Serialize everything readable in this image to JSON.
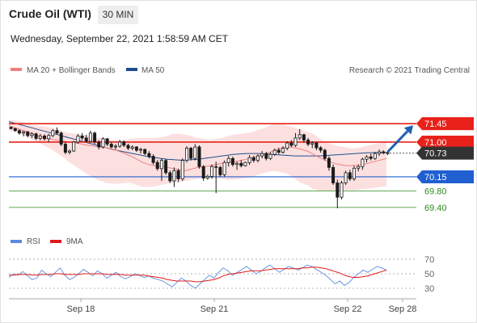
{
  "header": {
    "instrument": "Crude Oil (WTI)",
    "timeframe": "30 MIN",
    "datetime": "Wednesday, September 22, 2021 1:58:59 AM CET"
  },
  "legend": {
    "ma20_bb": "MA 20 + Bollinger Bands",
    "ma50": "MA 50",
    "credit": "Research © 2021 Trading Central",
    "rsi": "RSI",
    "rsi_ma": "9MA"
  },
  "colors": {
    "resistance": "#e8221b",
    "support_blue": "#1f5fd1",
    "support_green": "#2e8b1e",
    "ma20": "#f08080",
    "ma50": "#1f4e8c",
    "band_fill": "#fbdada",
    "candle_up": "#ffffff",
    "candle_down": "#1a1a1a",
    "last_price_tag": "#333333",
    "rsi": "#5b8be0",
    "rsi_ma": "#e01b1b"
  },
  "chart_data": [
    {
      "type": "candlestick",
      "ylim": [
        69.2,
        71.75
      ],
      "x_ticks": [
        "Sep 18",
        "Sep 21",
        "Sep 22",
        "Sep 28"
      ],
      "levels": [
        {
          "value": 71.45,
          "label": "71.45",
          "style": "red-tag"
        },
        {
          "value": 71.0,
          "label": "71.00",
          "style": "red-tag"
        },
        {
          "value": 70.73,
          "label": "70.73",
          "style": "dark-tag"
        },
        {
          "value": 70.15,
          "label": "70.15",
          "style": "blue-tag"
        },
        {
          "value": 69.8,
          "label": "69.80",
          "style": "green-text"
        },
        {
          "value": 69.4,
          "label": "69.40",
          "style": "green-text"
        }
      ],
      "last_price": 70.73,
      "projection": {
        "from": 70.73,
        "to": 71.45
      },
      "candles": [
        [
          71.36,
          71.38,
          71.31,
          71.33
        ],
        [
          71.33,
          71.35,
          71.25,
          71.28
        ],
        [
          71.28,
          71.32,
          71.18,
          71.22
        ],
        [
          71.22,
          71.28,
          71.14,
          71.25
        ],
        [
          71.25,
          71.27,
          71.12,
          71.16
        ],
        [
          71.16,
          71.24,
          71.1,
          71.2
        ],
        [
          71.2,
          71.23,
          71.05,
          71.09
        ],
        [
          71.09,
          71.2,
          71.04,
          71.15
        ],
        [
          71.15,
          71.19,
          71.04,
          71.08
        ],
        [
          71.08,
          71.2,
          71.0,
          71.16
        ],
        [
          71.16,
          71.32,
          71.12,
          71.28
        ],
        [
          71.28,
          71.36,
          71.18,
          71.22
        ],
        [
          71.22,
          71.26,
          70.9,
          70.95
        ],
        [
          70.95,
          71.0,
          70.7,
          70.75
        ],
        [
          70.75,
          70.82,
          70.7,
          70.78
        ],
        [
          70.78,
          71.03,
          70.76,
          71.0
        ],
        [
          71.0,
          71.2,
          70.96,
          71.15
        ],
        [
          71.15,
          71.22,
          71.05,
          71.1
        ],
        [
          71.1,
          71.18,
          70.98,
          71.02
        ],
        [
          71.02,
          71.28,
          71.0,
          71.22
        ],
        [
          71.22,
          71.26,
          70.95,
          71.0
        ],
        [
          71.0,
          71.05,
          70.82,
          70.88
        ],
        [
          70.88,
          71.12,
          70.84,
          71.08
        ],
        [
          71.08,
          71.1,
          70.9,
          70.95
        ],
        [
          70.95,
          71.0,
          70.85,
          70.88
        ],
        [
          70.88,
          70.95,
          70.82,
          70.9
        ],
        [
          70.9,
          71.05,
          70.86,
          71.0
        ],
        [
          71.0,
          71.04,
          70.88,
          70.92
        ],
        [
          70.92,
          70.96,
          70.8,
          70.85
        ],
        [
          70.85,
          70.92,
          70.8,
          70.88
        ],
        [
          70.88,
          70.9,
          70.76,
          70.8
        ],
        [
          70.8,
          70.86,
          70.72,
          70.82
        ],
        [
          70.82,
          70.84,
          70.68,
          70.72
        ],
        [
          70.72,
          70.78,
          70.6,
          70.65
        ],
        [
          70.65,
          70.7,
          70.45,
          70.5
        ],
        [
          70.5,
          70.56,
          70.3,
          70.35
        ],
        [
          70.35,
          70.6,
          70.05,
          70.55
        ],
        [
          70.55,
          70.58,
          70.2,
          70.25
        ],
        [
          70.25,
          70.3,
          70.0,
          70.05
        ],
        [
          70.05,
          70.38,
          69.9,
          70.3
        ],
        [
          70.3,
          70.35,
          70.02,
          70.1
        ],
        [
          70.1,
          70.6,
          70.05,
          70.55
        ],
        [
          70.55,
          70.9,
          70.5,
          70.85
        ],
        [
          70.85,
          70.88,
          70.55,
          70.6
        ],
        [
          70.6,
          70.95,
          70.55,
          70.88
        ],
        [
          70.88,
          70.92,
          70.35,
          70.4
        ],
        [
          70.4,
          70.44,
          70.05,
          70.12
        ],
        [
          70.12,
          70.2,
          70.08,
          70.16
        ],
        [
          70.16,
          70.45,
          70.1,
          70.4
        ],
        [
          70.4,
          70.52,
          69.75,
          70.38
        ],
        [
          70.38,
          70.42,
          70.15,
          70.2
        ],
        [
          70.2,
          70.55,
          70.15,
          70.5
        ],
        [
          70.5,
          70.66,
          70.4,
          70.6
        ],
        [
          70.6,
          70.64,
          70.4,
          70.45
        ],
        [
          70.45,
          70.52,
          70.32,
          70.48
        ],
        [
          70.48,
          70.56,
          70.38,
          70.42
        ],
        [
          70.42,
          70.52,
          70.4,
          70.5
        ],
        [
          70.5,
          70.68,
          70.44,
          70.62
        ],
        [
          70.62,
          70.66,
          70.5,
          70.55
        ],
        [
          70.55,
          70.7,
          70.5,
          70.66
        ],
        [
          70.66,
          70.78,
          70.6,
          70.72
        ],
        [
          70.72,
          70.76,
          70.55,
          70.6
        ],
        [
          70.6,
          70.75,
          70.56,
          70.7
        ],
        [
          70.7,
          70.84,
          70.66,
          70.8
        ],
        [
          70.8,
          70.86,
          70.7,
          70.75
        ],
        [
          70.75,
          70.9,
          70.72,
          70.85
        ],
        [
          70.85,
          71.02,
          70.8,
          70.98
        ],
        [
          70.98,
          71.05,
          70.88,
          70.92
        ],
        [
          70.92,
          71.22,
          70.88,
          71.1
        ],
        [
          71.1,
          71.32,
          71.05,
          71.18
        ],
        [
          71.18,
          71.2,
          70.98,
          71.05
        ],
        [
          71.05,
          71.1,
          70.9,
          70.95
        ],
        [
          70.95,
          71.02,
          70.85,
          70.98
        ],
        [
          70.98,
          71.0,
          70.8,
          70.86
        ],
        [
          70.86,
          70.9,
          70.74,
          70.8
        ],
        [
          70.8,
          70.84,
          70.55,
          70.6
        ],
        [
          70.6,
          70.65,
          70.3,
          70.38
        ],
        [
          70.38,
          70.45,
          69.95,
          70.0
        ],
        [
          70.0,
          70.08,
          69.38,
          69.65
        ],
        [
          69.65,
          70.05,
          69.6,
          70.0
        ],
        [
          70.0,
          70.3,
          69.95,
          70.25
        ],
        [
          70.25,
          70.32,
          70.05,
          70.1
        ],
        [
          70.1,
          70.42,
          70.05,
          70.36
        ],
        [
          70.36,
          70.45,
          70.28,
          70.4
        ],
        [
          70.4,
          70.62,
          70.32,
          70.58
        ],
        [
          70.58,
          70.68,
          70.5,
          70.64
        ],
        [
          70.64,
          70.72,
          70.55,
          70.6
        ],
        [
          70.6,
          70.76,
          70.56,
          70.72
        ],
        [
          70.72,
          70.82,
          70.66,
          70.76
        ],
        [
          70.76,
          70.8,
          70.7,
          70.74
        ],
        [
          70.74,
          70.78,
          70.68,
          70.73
        ]
      ],
      "ma20": [
        71.4,
        71.35,
        71.3,
        71.26,
        71.2,
        71.15,
        71.1,
        71.07,
        71.04,
        71.02,
        71.0,
        70.98,
        70.95,
        70.92,
        70.9,
        70.88,
        70.86,
        70.83,
        70.78,
        70.72,
        70.66,
        70.58,
        70.5,
        70.45,
        70.42,
        70.4,
        70.38,
        70.35,
        70.32,
        70.3,
        70.34,
        70.38,
        70.4,
        70.42,
        70.45,
        70.48,
        70.5,
        70.52,
        70.55,
        70.58,
        70.62,
        70.66,
        70.7,
        70.76,
        70.82,
        70.86,
        70.88,
        70.86,
        70.82,
        70.78,
        70.7,
        70.62,
        70.55,
        70.5,
        70.46,
        70.43,
        70.42,
        70.43,
        70.45,
        70.48,
        70.52,
        70.56,
        70.6
      ],
      "ma50": [
        71.5,
        71.46,
        71.42,
        71.38,
        71.34,
        71.3,
        71.26,
        71.22,
        71.18,
        71.14,
        71.1,
        71.06,
        71.02,
        70.98,
        70.94,
        70.9,
        70.86,
        70.82,
        70.79,
        70.76,
        70.73,
        70.7,
        70.67,
        70.64,
        70.62,
        70.6,
        70.58,
        70.57,
        70.56,
        70.56,
        70.57,
        70.58,
        70.6,
        70.62,
        70.64,
        70.66,
        70.68,
        70.7,
        70.71,
        70.72,
        70.72,
        70.72,
        70.71,
        70.7,
        70.69,
        70.68,
        70.67,
        70.66,
        70.66,
        70.66,
        70.66,
        70.66,
        70.67,
        70.68,
        70.69,
        70.7,
        70.71,
        70.72,
        70.73,
        70.74,
        70.74,
        70.75,
        70.75
      ],
      "bb_upper": [
        71.55,
        71.52,
        71.5,
        71.45,
        71.42,
        71.4,
        71.38,
        71.35,
        71.3,
        71.25,
        71.22,
        71.2,
        71.18,
        71.15,
        71.12,
        71.1,
        71.08,
        71.05,
        71.05,
        71.05,
        71.08,
        71.1,
        71.1,
        71.1,
        71.1,
        71.12,
        71.15,
        71.2,
        71.2,
        71.18,
        71.15,
        71.1,
        71.08,
        71.05,
        71.08,
        71.1,
        71.15,
        71.18,
        71.2,
        71.22,
        71.25,
        71.3,
        71.35,
        71.42,
        71.45,
        71.45,
        71.4,
        71.35,
        71.3,
        71.25,
        71.2,
        71.1,
        71.0,
        70.95,
        70.9,
        70.88,
        70.85,
        70.85,
        70.88,
        70.92,
        70.95,
        70.98,
        71.0
      ],
      "bb_lower": [
        71.28,
        71.25,
        71.2,
        71.12,
        71.05,
        70.98,
        70.9,
        70.82,
        70.72,
        70.62,
        70.5,
        70.4,
        70.3,
        70.2,
        70.12,
        70.05,
        70.0,
        69.98,
        69.98,
        70.0,
        70.0,
        69.95,
        69.9,
        69.9,
        69.92,
        69.95,
        69.98,
        70.0,
        70.02,
        70.05,
        70.08,
        70.1,
        70.12,
        70.12,
        70.12,
        70.1,
        70.08,
        70.08,
        70.1,
        70.12,
        70.15,
        70.2,
        70.25,
        70.28,
        70.28,
        70.25,
        70.2,
        70.1,
        70.0,
        69.95,
        69.85,
        69.8,
        69.8,
        69.8,
        69.82,
        69.82,
        69.82,
        69.82,
        69.85,
        69.86,
        69.88,
        69.9,
        69.92
      ]
    },
    {
      "type": "line",
      "ylim": [
        20,
        80
      ],
      "y_ticks": [
        70,
        50,
        30
      ],
      "series": [
        {
          "name": "RSI",
          "values": [
            45,
            50,
            48,
            53,
            47,
            42,
            44,
            55,
            50,
            46,
            52,
            58,
            48,
            42,
            45,
            50,
            56,
            52,
            47,
            54,
            50,
            44,
            48,
            52,
            46,
            43,
            46,
            50,
            48,
            45,
            47,
            44,
            42,
            40,
            36,
            32,
            38,
            44,
            40,
            34,
            30,
            36,
            42,
            48,
            44,
            52,
            58,
            54,
            48,
            52,
            56,
            60,
            55,
            50,
            53,
            58,
            62,
            57,
            52,
            56,
            60,
            58,
            55,
            58,
            62,
            60,
            56,
            52,
            48,
            42,
            36,
            40,
            34,
            38,
            45,
            50,
            55,
            52,
            56,
            60,
            58,
            55
          ]
        },
        {
          "name": "9MA",
          "values": [
            48,
            48,
            49,
            49,
            49,
            48,
            48,
            49,
            49,
            49,
            50,
            50,
            49,
            49,
            49,
            49,
            50,
            50,
            50,
            50,
            50,
            49,
            49,
            49,
            49,
            48,
            48,
            48,
            48,
            48,
            47,
            46,
            45,
            44,
            42,
            41,
            40,
            40,
            40,
            40,
            39,
            39,
            40,
            41,
            42,
            44,
            47,
            49,
            50,
            51,
            52,
            53,
            54,
            54,
            54,
            55,
            56,
            57,
            57,
            57,
            57,
            57,
            57,
            58,
            58,
            59,
            59,
            58,
            57,
            55,
            53,
            51,
            48,
            46,
            45,
            45,
            46,
            47,
            49,
            51,
            53,
            55
          ]
        }
      ]
    }
  ]
}
